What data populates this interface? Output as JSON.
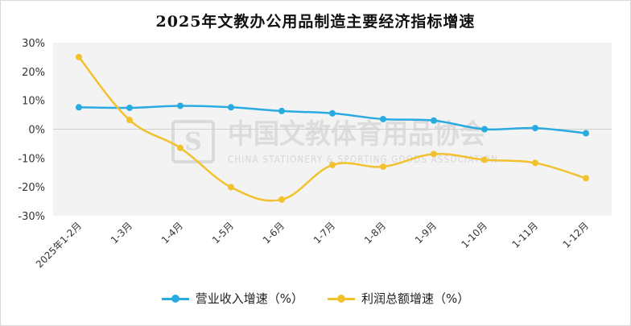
{
  "chart_data": {
    "type": "line",
    "title": "2025年文教办公用品制造主要经济指标增速",
    "categories": [
      "2025年1-2月",
      "1-3月",
      "1-4月",
      "1-5月",
      "1-6月",
      "1-7月",
      "1-8月",
      "1-9月",
      "1-10月",
      "1-11月",
      "1-12月"
    ],
    "y_ticks": [
      "30%",
      "20%",
      "10%",
      "0%",
      "-10%",
      "-20%",
      "-30%"
    ],
    "ylim": [
      -30,
      30
    ],
    "grid": "horizontal zero line only",
    "legend_position": "bottom",
    "series": [
      {
        "name": "营业收入增速（%）",
        "color": "#29ABE2",
        "values": [
          7.6,
          7.4,
          8.1,
          7.6,
          6.3,
          5.5,
          3.5,
          3.0,
          0.0,
          0.4,
          -1.4
        ]
      },
      {
        "name": "利润总额增速（%）",
        "color": "#F2C12E",
        "values": [
          25.0,
          3.2,
          -6.5,
          -20.1,
          -24.4,
          -12.4,
          -13.0,
          -8.6,
          -10.6,
          -11.7,
          -17.0
        ]
      }
    ]
  },
  "watermark": {
    "cn": "中国文教体育用品协会",
    "en": "CHINA STATIONERY & SPORTING GOODS ASSOCIATION"
  }
}
